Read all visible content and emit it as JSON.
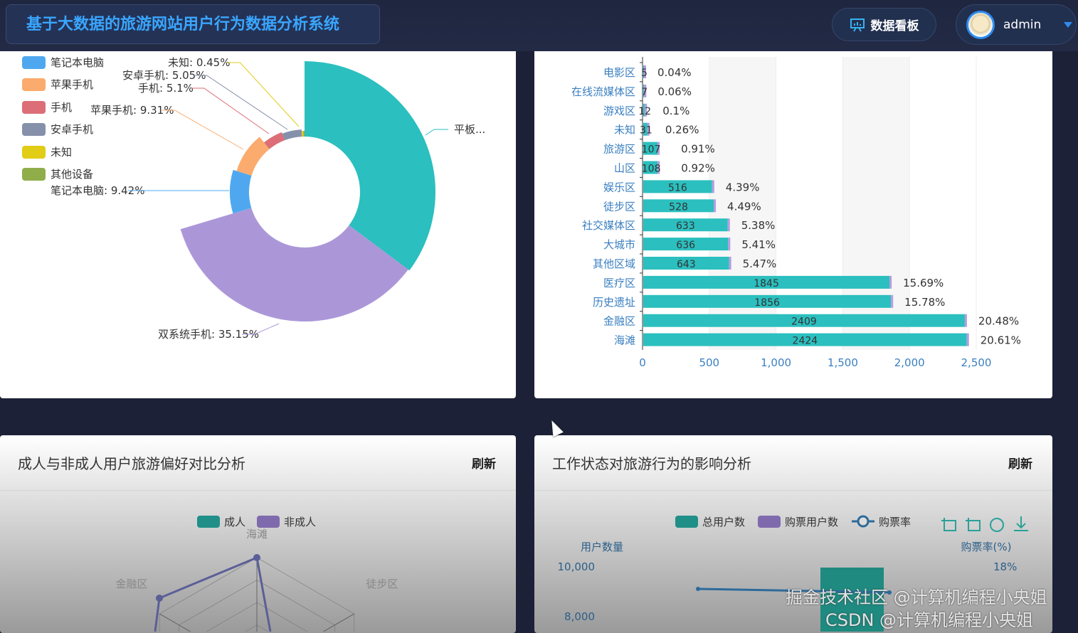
{
  "header": {
    "title": "基于大数据的旅游网站用户行为数据分析系统",
    "dashboard_label": "数据看板",
    "username": "admin"
  },
  "device_pie": {
    "legend": [
      "笔记本电脑",
      "苹果手机",
      "手机",
      "安卓手机",
      "未知",
      "其他设备"
    ],
    "slices": [
      {
        "name": "平板",
        "label": "平板...",
        "color": "#2bbfbf"
      },
      {
        "name": "双系统手机",
        "label": "双系统手机: 35.15%",
        "value": 35.15,
        "color": "#ab97d8"
      },
      {
        "name": "笔记本电脑",
        "label": "笔记本电脑: 9.42%",
        "value": 9.42,
        "color": "#4fa8ef"
      },
      {
        "name": "苹果手机",
        "label": "苹果手机: 9.31%",
        "value": 9.31,
        "color": "#fbab6d"
      },
      {
        "name": "手机",
        "label": "手机: 5.1%",
        "value": 5.1,
        "color": "#db6e77"
      },
      {
        "name": "安卓手机",
        "label": "安卓手机: 5.05%",
        "value": 5.05,
        "color": "#8590aa"
      },
      {
        "name": "未知",
        "label": "未知: 0.45%",
        "value": 0.45,
        "color": "#e1cc16"
      },
      {
        "name": "其他设备",
        "color": "#8fae4a"
      }
    ]
  },
  "chart_data": [
    {
      "type": "bar",
      "orientation": "horizontal",
      "categories": [
        "电影区",
        "在线流媒体区",
        "游戏区",
        "未知",
        "旅游区",
        "山区",
        "娱乐区",
        "徒步区",
        "社交媒体区",
        "大城市",
        "其他区域",
        "医疗区",
        "历史遗址",
        "金融区",
        "海滩"
      ],
      "values": [
        5,
        7,
        12,
        31,
        107,
        108,
        516,
        528,
        633,
        636,
        643,
        1845,
        1856,
        2409,
        2424
      ],
      "percent_labels": [
        "0.04%",
        "0.06%",
        "0.1%",
        "0.26%",
        "0.91%",
        "0.92%",
        "4.39%",
        "4.49%",
        "5.38%",
        "5.41%",
        "5.47%",
        "15.69%",
        "15.78%",
        "20.48%",
        "20.61%"
      ],
      "xlim": [
        0,
        2500
      ],
      "x_ticks": [
        "0",
        "500",
        "1,000",
        "1,500",
        "2,000",
        "2,500"
      ],
      "bar_color": "#2bbfbf",
      "end_color": "#b79be0",
      "grid": "alternating-bands"
    },
    {
      "type": "radar",
      "title": "成人与非成人用户旅游偏好对比分析",
      "legend": [
        {
          "name": "成人",
          "color": "#1f8f88"
        },
        {
          "name": "非成人",
          "color": "#7f6aad"
        }
      ],
      "axes_visible": [
        "海滩",
        "金融区",
        "徒步区"
      ]
    },
    {
      "type": "bar-line",
      "title": "工作状态对旅游行为的影响分析",
      "legend": [
        {
          "name": "总用户数",
          "color": "#1f8f88"
        },
        {
          "name": "购票用户数",
          "color": "#7f6aad"
        },
        {
          "name": "购票率",
          "color": "#2d6a9a"
        }
      ],
      "ylabel_left": "用户数量",
      "ylabel_right": "购票率(%)",
      "y_ticks_left": [
        "10,000",
        "8,000"
      ],
      "y_ticks_right": [
        "18%"
      ]
    }
  ],
  "panels": {
    "refresh_label": "刷新"
  },
  "watermarks": [
    "掘金技术社区 @计算机编程小央姐",
    "CSDN @计算机编程小央姐"
  ]
}
